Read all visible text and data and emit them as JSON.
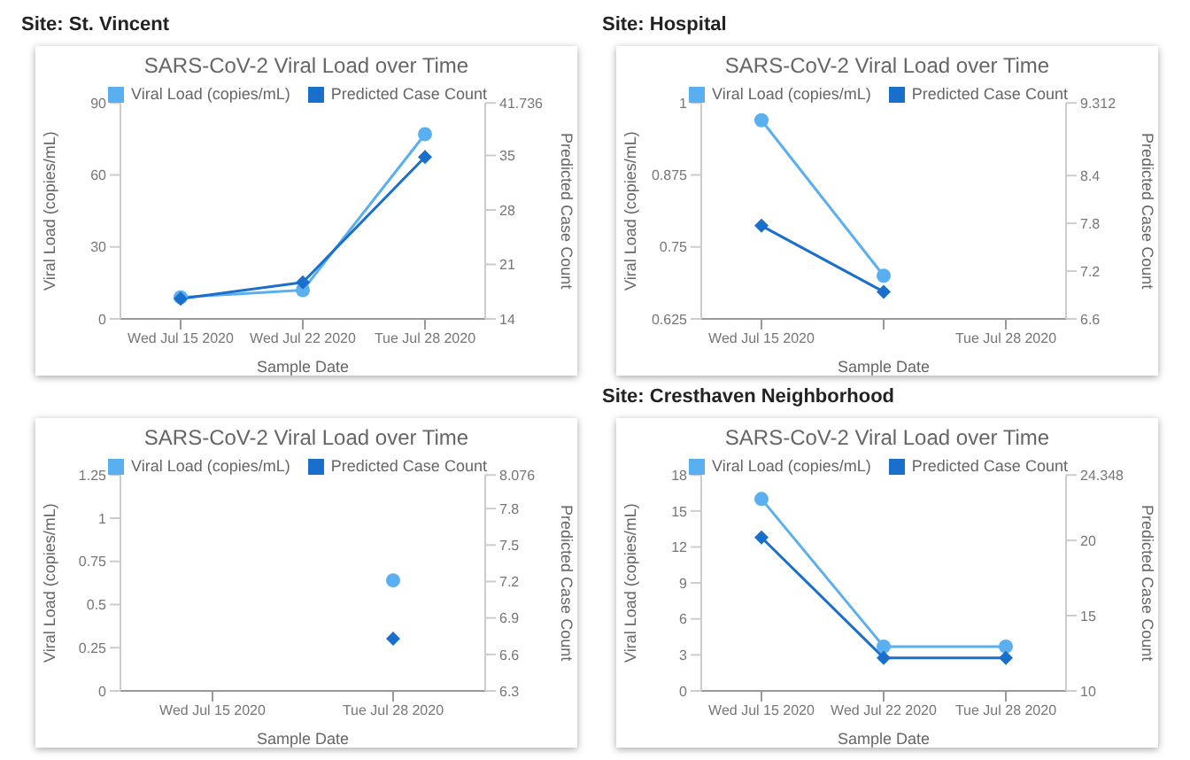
{
  "chart_data": [
    {
      "type": "line",
      "title": "Site: St. Vincent",
      "subtitle": "SARS-CoV-2 Viral Load over Time",
      "xlabel": "Sample Date",
      "ylabel": "Viral Load (copies/mL)",
      "y2label": "Predicted Case Count",
      "categories": [
        "Wed Jul 15 2020",
        "Wed Jul 22 2020",
        "Tue Jul 28 2020"
      ],
      "ylim": [
        0,
        90
      ],
      "yticks": [
        0,
        30,
        60,
        90
      ],
      "y2lim": [
        14,
        41.736
      ],
      "y2ticks": [
        14,
        21,
        28,
        35,
        41.736
      ],
      "grid": false,
      "legend": "top",
      "series": [
        {
          "name": "Viral Load (copies/mL)",
          "color": "#5aaff0",
          "marker": "circle",
          "values": [
            9,
            12,
            77
          ]
        },
        {
          "name": "Predicted Case Count",
          "color": "#1a6fcc",
          "marker": "diamond",
          "axis": "y2",
          "values": [
            16.6,
            18.7,
            34.8
          ]
        }
      ]
    },
    {
      "type": "line",
      "title": "Site: Hospital",
      "subtitle": "SARS-CoV-2 Viral Load over Time",
      "xlabel": "Sample Date",
      "ylabel": "Viral Load (copies/mL)",
      "y2label": "Predicted Case Count",
      "categories": [
        "Wed Jul 15 2020",
        null,
        "Tue Jul 28 2020"
      ],
      "ylim": [
        0.625,
        1
      ],
      "yticks": [
        0.625,
        0.75,
        0.875,
        1
      ],
      "y2lim": [
        6.6,
        9.312
      ],
      "y2ticks": [
        6.6,
        7.2,
        7.8,
        8.4,
        9.312
      ],
      "grid": false,
      "legend": "top",
      "series": [
        {
          "name": "Viral Load (copies/mL)",
          "color": "#5aaff0",
          "marker": "circle",
          "values": [
            0.97,
            0.7,
            null
          ]
        },
        {
          "name": "Predicted Case Count",
          "color": "#1a6fcc",
          "marker": "diamond",
          "axis": "y2",
          "values": [
            7.77,
            6.94,
            null
          ]
        }
      ]
    },
    {
      "type": "line",
      "subtitle": "SARS-CoV-2 Viral Load over Time",
      "xlabel": "Sample Date",
      "ylabel": "Viral Load (copies/mL)",
      "y2label": "Predicted Case Count",
      "categories": [
        "Wed Jul 15 2020",
        "Tue Jul 28 2020"
      ],
      "ylim": [
        0,
        1.25
      ],
      "yticks": [
        0,
        0.25,
        0.5,
        0.75,
        1,
        1.25
      ],
      "y2lim": [
        6.3,
        8.076
      ],
      "y2ticks": [
        6.3,
        6.6,
        6.9,
        7.2,
        7.5,
        7.8,
        8.076
      ],
      "grid": false,
      "legend": "top",
      "series": [
        {
          "name": "Viral Load (copies/mL)",
          "color": "#5aaff0",
          "marker": "circle",
          "values": [
            null,
            0.64
          ]
        },
        {
          "name": "Predicted Case Count",
          "color": "#1a6fcc",
          "marker": "diamond",
          "axis": "y2",
          "values": [
            null,
            6.73
          ]
        }
      ]
    },
    {
      "type": "line",
      "title": "Site: Cresthaven Neighborhood",
      "subtitle": "SARS-CoV-2 Viral Load over Time",
      "xlabel": "Sample Date",
      "ylabel": "Viral Load (copies/mL)",
      "y2label": "Predicted Case Count",
      "categories": [
        "Wed Jul 15 2020",
        "Wed Jul 22 2020",
        "Tue Jul 28 2020"
      ],
      "ylim": [
        0,
        18
      ],
      "yticks": [
        0,
        3,
        6,
        9,
        12,
        15,
        18
      ],
      "y2lim": [
        10,
        24.348
      ],
      "y2ticks": [
        10,
        15,
        20,
        24.348
      ],
      "grid": false,
      "legend": "top",
      "series": [
        {
          "name": "Viral Load (copies/mL)",
          "color": "#5aaff0",
          "marker": "circle",
          "values": [
            16,
            3.7,
            3.7
          ]
        },
        {
          "name": "Predicted Case Count",
          "color": "#1a6fcc",
          "marker": "diamond",
          "axis": "y2",
          "values": [
            20.2,
            12.2,
            12.2
          ]
        }
      ]
    }
  ]
}
